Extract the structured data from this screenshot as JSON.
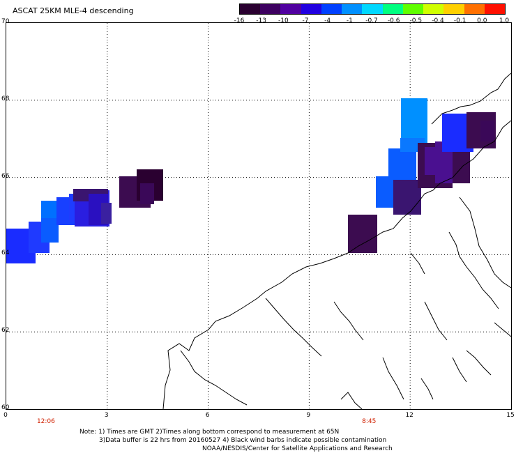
{
  "title": "ASCAT 25KM MLE-4 descending",
  "colorbar": {
    "labels": [
      "-16",
      "-13",
      "-10",
      "-7",
      "-4",
      "-1",
      "-0.7",
      "-0.6",
      "-0.5",
      "-0.4",
      "-0.1",
      "0.0",
      "1.0"
    ],
    "colors": [
      "#2a0030",
      "#3d0060",
      "#5000a0",
      "#2000e0",
      "#0040ff",
      "#0090ff",
      "#00d8ff",
      "#00ff80",
      "#60ff00",
      "#d0ff00",
      "#ffd000",
      "#ff7000",
      "#ff1000"
    ]
  },
  "map": {
    "lat_labels": [
      "70",
      "68",
      "66",
      "64",
      "62",
      "60"
    ],
    "lon_labels": [
      "0",
      "3",
      "6",
      "9",
      "12",
      "15"
    ],
    "times": [
      {
        "label": "12:06",
        "lon": 1.2
      },
      {
        "label": "8:45",
        "lon": 10.8
      }
    ],
    "colors": {
      "land_outline": "#000000",
      "grid": "#000000"
    }
  },
  "notes": {
    "line1": "Note: 1) Times are GMT 2)Times along bottom correspond to measurement at 65N",
    "line2": "3)Data buffer is 22 hrs from 20160527 4) Black wind barbs indicate possible contamination",
    "line3": "NOAA/NESDIS/Center for Satellite Applications and Research"
  }
}
